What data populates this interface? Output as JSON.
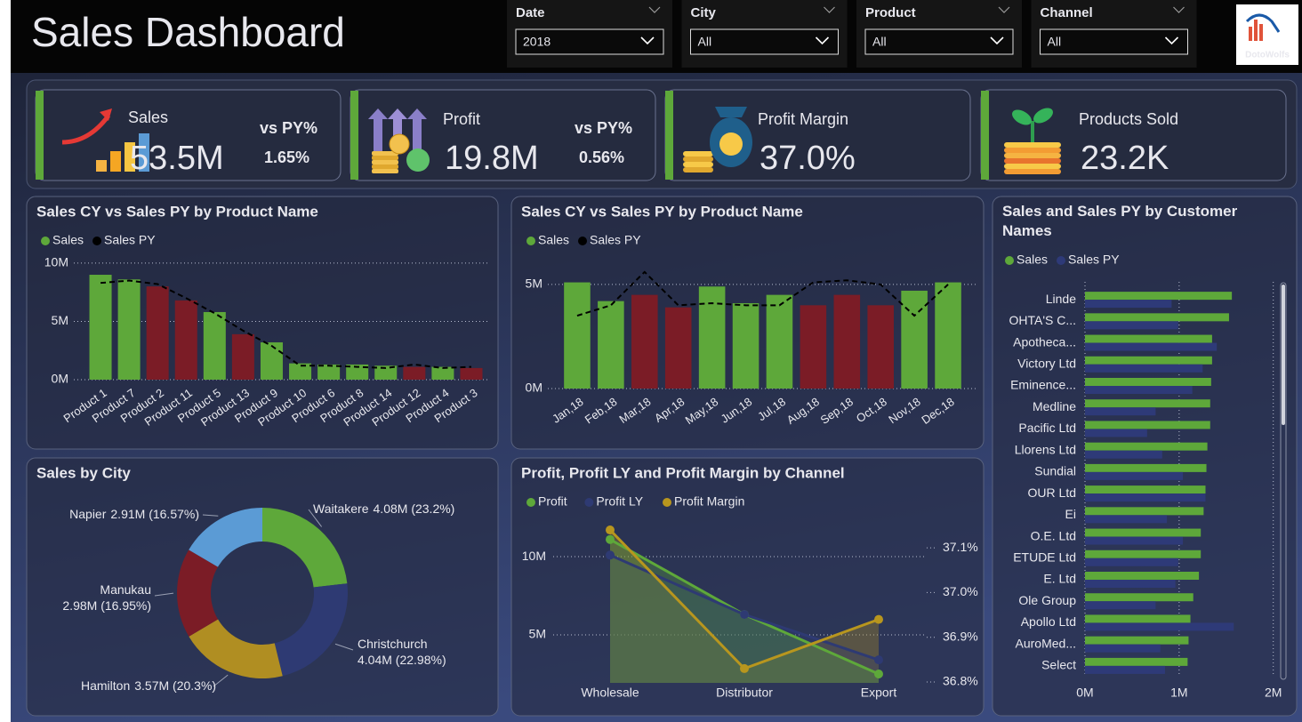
{
  "header": {
    "title": "Sales Dashboard",
    "logo": "DotoWolfs"
  },
  "filters": [
    {
      "label": "Date",
      "value": "2018"
    },
    {
      "label": "City",
      "value": "All"
    },
    {
      "label": "Product",
      "value": "All"
    },
    {
      "label": "Channel",
      "value": "All"
    }
  ],
  "kpis": [
    {
      "label": "Sales",
      "value": "53.5M",
      "compare_label": "vs PY%",
      "compare": "1.65%"
    },
    {
      "label": "Profit",
      "value": "19.8M",
      "compare_label": "vs PY%",
      "compare": "0.56%"
    },
    {
      "label": "Profit Margin",
      "value": "37.0%"
    },
    {
      "label": "Products Sold",
      "value": "23.2K"
    }
  ],
  "chart_data": [
    {
      "type": "bar",
      "title": "Sales CY vs Sales PY by Product Name",
      "categories": [
        "Product 1",
        "Product 7",
        "Product 2",
        "Product 11",
        "Product 5",
        "Product 13",
        "Product 9",
        "Product 10",
        "Product 6",
        "Product 8",
        "Product 14",
        "Product 12",
        "Product 4",
        "Product 3"
      ],
      "series": [
        {
          "name": "Sales",
          "color": "#5ea83a",
          "values": [
            9.0,
            8.6,
            8.0,
            6.8,
            5.8,
            3.9,
            3.2,
            1.4,
            1.3,
            1.3,
            1.2,
            1.1,
            1.1,
            1.0
          ],
          "point_colors": [
            "#5ea83a",
            "#5ea83a",
            "#7b1c26",
            "#7b1c26",
            "#5ea83a",
            "#7b1c26",
            "#5ea83a",
            "#5ea83a",
            "#5ea83a",
            "#5ea83a",
            "#5ea83a",
            "#7b1c26",
            "#5ea83a",
            "#7b1c26"
          ]
        },
        {
          "name": "Sales PY",
          "color": "#000000",
          "line": true,
          "dashed": true,
          "values": [
            8.3,
            8.5,
            8.2,
            7.0,
            5.7,
            4.2,
            2.9,
            1.2,
            1.2,
            1.1,
            1.0,
            1.3,
            1.0,
            1.1
          ]
        }
      ],
      "ylim": [
        0,
        10.45
      ],
      "yticks": [
        {
          "value": 0,
          "label": "0M"
        },
        {
          "value": 5,
          "label": "5M"
        },
        {
          "value": 10,
          "label": "10M"
        }
      ],
      "grid": true
    },
    {
      "type": "bar",
      "title": "Sales CY vs Sales PY by Product Name",
      "categories": [
        "Jan,18",
        "Feb,18",
        "Mar,18",
        "Apr,18",
        "May,18",
        "Jun,18",
        "Jul,18",
        "Aug,18",
        "Sep,18",
        "Oct,18",
        "Nov,18",
        "Dec,18"
      ],
      "series": [
        {
          "name": "Sales",
          "color": "#5ea83a",
          "values": [
            5.1,
            4.2,
            4.5,
            3.9,
            4.9,
            4.1,
            4.5,
            4.0,
            4.5,
            4.0,
            4.7,
            5.1
          ],
          "point_colors": [
            "#5ea83a",
            "#5ea83a",
            "#7b1c26",
            "#7b1c26",
            "#5ea83a",
            "#5ea83a",
            "#5ea83a",
            "#7b1c26",
            "#7b1c26",
            "#7b1c26",
            "#5ea83a",
            "#5ea83a"
          ]
        },
        {
          "name": "Sales PY",
          "color": "#000000",
          "line": true,
          "dashed": true,
          "values": [
            3.5,
            4.0,
            5.6,
            4.0,
            4.1,
            4.0,
            4.0,
            5.1,
            5.2,
            5.0,
            3.5,
            5.0
          ]
        }
      ],
      "ylim": [
        0,
        5.85
      ],
      "yticks": [
        {
          "value": 0,
          "label": "0M"
        },
        {
          "value": 5,
          "label": "5M"
        }
      ],
      "grid": true
    },
    {
      "type": "donut",
      "title": "Sales by City",
      "categories": [
        "Waitakere",
        "Christchurch",
        "Hamilton",
        "Manukau",
        "Napier"
      ],
      "values": [
        4.08,
        4.04,
        3.57,
        2.98,
        2.91
      ],
      "value_labels": [
        "4.08M (23.2%)",
        "4.04M (22.98%)",
        "3.57M (20.3%)",
        "2.98M (16.95%)",
        "2.91M (16.57%)"
      ],
      "colors": [
        "#5ea83a",
        "#2e3a73",
        "#b08e22",
        "#7b1c26",
        "#5b9bd5"
      ]
    },
    {
      "type": "line",
      "title": "Profit, Profit LY and Profit Margin by Channel",
      "categories": [
        "Wholesale",
        "Distributor",
        "Export"
      ],
      "series": [
        {
          "name": "Profit",
          "color": "#5ea83a",
          "values": [
            11.1,
            6.3,
            2.5
          ]
        },
        {
          "name": "Profit LY",
          "color": "#2e3a73",
          "values": [
            10.1,
            6.3,
            3.4
          ]
        },
        {
          "name": "Profit Margin",
          "color": "#b8961e",
          "axis": "y2",
          "values": [
            37.14,
            36.83,
            36.94
          ]
        }
      ],
      "area": true,
      "ylim": [
        1.93,
        12.05
      ],
      "yticks": [
        {
          "value": 5,
          "label": "5M"
        },
        {
          "value": 10,
          "label": "10M"
        }
      ],
      "y2lim": [
        36.798,
        37.152
      ],
      "y2ticks": [
        {
          "value": 36.8,
          "label": "36.8%"
        },
        {
          "value": 36.9,
          "label": "36.9%"
        },
        {
          "value": 37.0,
          "label": "37.0%"
        },
        {
          "value": 37.1,
          "label": "37.1%"
        }
      ],
      "grid": true
    },
    {
      "type": "bar",
      "horizontal": true,
      "title": "Sales and Sales PY by Customer Names",
      "categories": [
        "Linde",
        "OHTA'S C...",
        "Apotheca...",
        "Victory Ltd",
        "Eminence...",
        "Medline",
        "Pacific Ltd",
        "Llorens Ltd",
        "Sundial",
        "OUR Ltd",
        "Ei",
        "O.E. Ltd",
        "ETUDE Ltd",
        "E. Ltd",
        "Ole Group",
        "Apollo Ltd",
        "AuroMed...",
        "Select"
      ],
      "series": [
        {
          "name": "Sales",
          "color": "#5ea83a",
          "values": [
            1.56,
            1.53,
            1.35,
            1.35,
            1.34,
            1.33,
            1.33,
            1.3,
            1.29,
            1.28,
            1.26,
            1.23,
            1.23,
            1.21,
            1.15,
            1.12,
            1.1,
            1.09
          ]
        },
        {
          "name": "Sales PY",
          "color": "#2e3a78",
          "values": [
            0.92,
            0.99,
            1.4,
            1.25,
            1.14,
            0.75,
            0.66,
            0.82,
            1.04,
            1.28,
            0.87,
            1.04,
            0.99,
            0.96,
            0.75,
            1.58,
            0.8,
            0.85
          ]
        }
      ],
      "xlim": [
        0,
        2.05
      ],
      "xticks": [
        {
          "value": 0,
          "label": "0M"
        },
        {
          "value": 1,
          "label": "1M"
        },
        {
          "value": 2,
          "label": "2M"
        }
      ],
      "grid": true
    }
  ]
}
